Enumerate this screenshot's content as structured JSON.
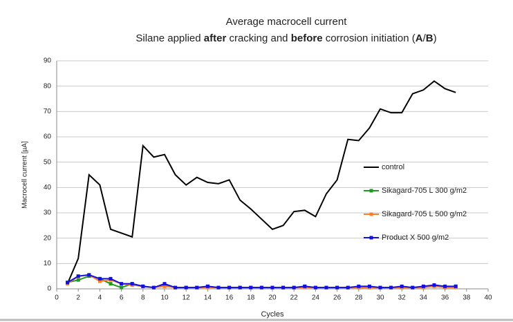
{
  "chart_data": {
    "type": "line",
    "title": "Average macrocell current",
    "subtitle_parts": [
      "Silane applied ",
      "after",
      " cracking and ",
      "before",
      " corrosion initiation (",
      "A",
      "/",
      "B",
      ")"
    ],
    "subtitle_bold": [
      false,
      true,
      false,
      true,
      false,
      true,
      false,
      true,
      false
    ],
    "x_label": "Cycles",
    "y_label": "Macrocell current [µA]",
    "x": [
      1,
      2,
      3,
      4,
      5,
      6,
      7,
      8,
      9,
      10,
      11,
      12,
      13,
      14,
      15,
      16,
      17,
      18,
      19,
      20,
      21,
      22,
      23,
      24,
      25,
      26,
      27,
      28,
      29,
      30,
      31,
      32,
      33,
      34,
      35,
      36,
      37
    ],
    "series": [
      {
        "name": "control",
        "color": "#000000",
        "marker": false,
        "values": [
          2,
          12,
          45,
          41,
          23.5,
          22,
          20.5,
          56.5,
          52,
          53,
          45,
          41,
          44,
          42,
          41.5,
          43,
          35,
          31.5,
          27.5,
          23.5,
          25,
          30.5,
          31,
          28.5,
          37.5,
          43,
          59,
          58.5,
          63.5,
          71,
          69.5,
          69.5,
          77,
          78.5,
          82,
          79,
          77.5
        ]
      },
      {
        "name": "Sikagard-705 L 300 g/m2",
        "color": "#1e9a1e",
        "marker": true,
        "values": [
          2.5,
          3.5,
          5,
          4,
          2,
          0.5,
          2,
          1,
          0.5,
          1.5,
          0.5,
          0.5,
          0.5,
          1,
          0.5,
          0.5,
          0.5,
          0.5,
          0.5,
          0.5,
          0.5,
          0.5,
          1,
          0.5,
          0.5,
          0.5,
          0.5,
          0.5,
          0.5,
          0.5,
          0.5,
          0.5,
          0.5,
          0.5,
          1,
          0.5,
          1
        ]
      },
      {
        "name": "Sikagard-705 L 500 g/m2",
        "color": "#ff7f27",
        "marker": true,
        "values": [
          2,
          5,
          5.5,
          3,
          3.5,
          2,
          1.5,
          1,
          0.5,
          1,
          0.5,
          0.5,
          0.5,
          0.5,
          0.5,
          0.5,
          0.5,
          0.5,
          0.5,
          0.5,
          0.5,
          0.5,
          0.5,
          0.5,
          0.5,
          0.5,
          0.5,
          0.5,
          0.5,
          0.5,
          0.5,
          0.5,
          0.5,
          0.5,
          1,
          0.5,
          0.5
        ]
      },
      {
        "name": "Product X 500 g/m2",
        "color": "#1010e0",
        "marker": true,
        "values": [
          2.5,
          5,
          5.5,
          4,
          4,
          2,
          2,
          1,
          0.5,
          2,
          0.5,
          0.5,
          0.5,
          1,
          0.5,
          0.5,
          0.5,
          0.5,
          0.5,
          0.5,
          0.5,
          0.5,
          1,
          0.5,
          0.5,
          0.5,
          0.5,
          1,
          1,
          0.5,
          0.5,
          1,
          0.5,
          1,
          1.5,
          1,
          1
        ]
      }
    ],
    "xlim": [
      0,
      40
    ],
    "xticks": [
      0,
      2,
      4,
      6,
      8,
      10,
      12,
      14,
      16,
      18,
      20,
      22,
      24,
      26,
      28,
      30,
      32,
      34,
      36,
      38,
      40
    ],
    "ylim": [
      0,
      90
    ],
    "yticks": [
      0,
      10,
      20,
      30,
      40,
      50,
      60,
      70,
      80,
      90
    ],
    "grid": true,
    "legend": "right"
  }
}
